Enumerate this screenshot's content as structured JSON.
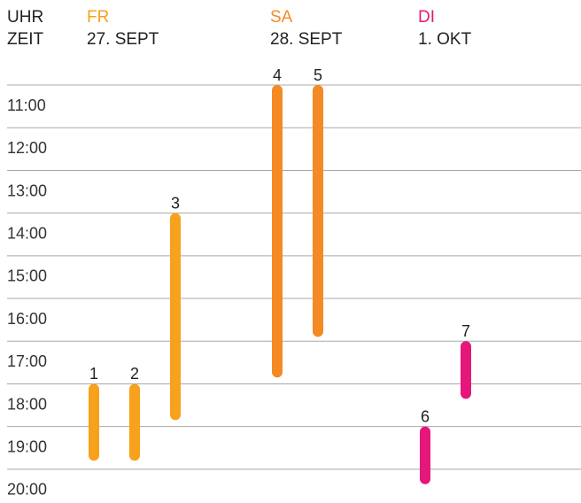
{
  "chart_data": {
    "type": "timeline",
    "axis_label": [
      "UHR",
      "ZEIT"
    ],
    "columns": [
      {
        "day": "FR",
        "date": "27. SEPT",
        "color": "#f7a11c"
      },
      {
        "day": "SA",
        "date": "28. SEPT",
        "color": "#f58a24"
      },
      {
        "day": "DI",
        "date": "1. OKT",
        "color": "#e5177b"
      }
    ],
    "events": [
      {
        "label": "1",
        "column": 0,
        "start": 17.5,
        "end": 19.3
      },
      {
        "label": "2",
        "column": 0,
        "start": 17.5,
        "end": 19.3
      },
      {
        "label": "3",
        "column": 0,
        "start": 13.5,
        "end": 18.35
      },
      {
        "label": "4",
        "column": 1,
        "start": 10.5,
        "end": 17.35
      },
      {
        "label": "5",
        "column": 1,
        "start": 10.5,
        "end": 16.4
      },
      {
        "label": "6",
        "column": 2,
        "start": 18.5,
        "end": 19.85
      },
      {
        "label": "7",
        "column": 2,
        "start": 16.5,
        "end": 17.85
      }
    ],
    "ylim": [
      10.25,
      20.25
    ],
    "yticks": [
      {
        "value": 11,
        "label": "11:00"
      },
      {
        "value": 12,
        "label": "12:00"
      },
      {
        "value": 13,
        "label": "13:00"
      },
      {
        "value": 14,
        "label": "14:00"
      },
      {
        "value": 15,
        "label": "15:00"
      },
      {
        "value": 16,
        "label": "16:00"
      },
      {
        "value": 17,
        "label": "17:00"
      },
      {
        "value": 18,
        "label": "18:00"
      },
      {
        "value": 19,
        "label": "19:00"
      },
      {
        "value": 20,
        "label": "20:00"
      }
    ],
    "grid": true
  }
}
